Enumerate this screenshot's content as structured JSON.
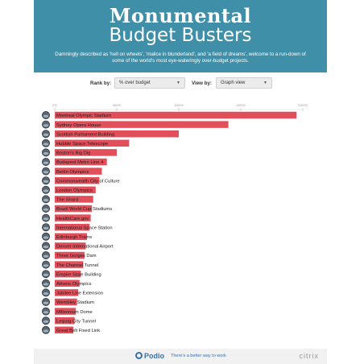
{
  "header": {
    "title_line1": "Monumental",
    "title_line2": "Budget Busters",
    "intro": "Damningly described as 'hell on wheels', 'malice in blunderland', and 'a field of dreams', welcome to a run-down of some of the world's most eye-wateringly over-budget projects."
  },
  "controls": {
    "rank_label": "Rank by:",
    "rank_value": "% over budget",
    "view_label": "View by:",
    "view_value": "Graph view"
  },
  "chart_data": {
    "type": "bar",
    "orientation": "horizontal",
    "x_ticks": [
      "0%",
      "500%",
      "1000%",
      "1500%",
      "2000%"
    ],
    "xlim": [
      0,
      2000
    ],
    "categories": [
      "Montreal Olympic Stadium",
      "Sydney Opera House",
      "Scottish Parliament Building",
      "Hubble Space Telescope",
      "Boston's Big Dig",
      "Budapest Metro Line 4",
      "Berlin Olympics",
      "Commonwealth City of Culture",
      "London Olympics",
      "The Shard",
      "Brazil World Cup Stadiums",
      "HealthCare.gov",
      "International Space Station",
      "Edinburgh Trams",
      "Denver International Airport",
      "Three Gorges Dam",
      "The Channel Tunnel",
      "Empire State Building",
      "Athens Olympics",
      "Jubilee Line Extension",
      "Wembley Stadium",
      "Millennium Dome",
      "Leipzig City Tunnel",
      "Great Belt Fixed Link"
    ],
    "values": [
      1950,
      1400,
      1000,
      600,
      500,
      420,
      380,
      360,
      330,
      310,
      300,
      290,
      280,
      260,
      250,
      240,
      230,
      210,
      200,
      190,
      180,
      170,
      160,
      150
    ],
    "bar_color": "#e1505a"
  },
  "footer": {
    "brand": "Podio",
    "tagline": "There's a better way to work",
    "partner": "citrix"
  }
}
